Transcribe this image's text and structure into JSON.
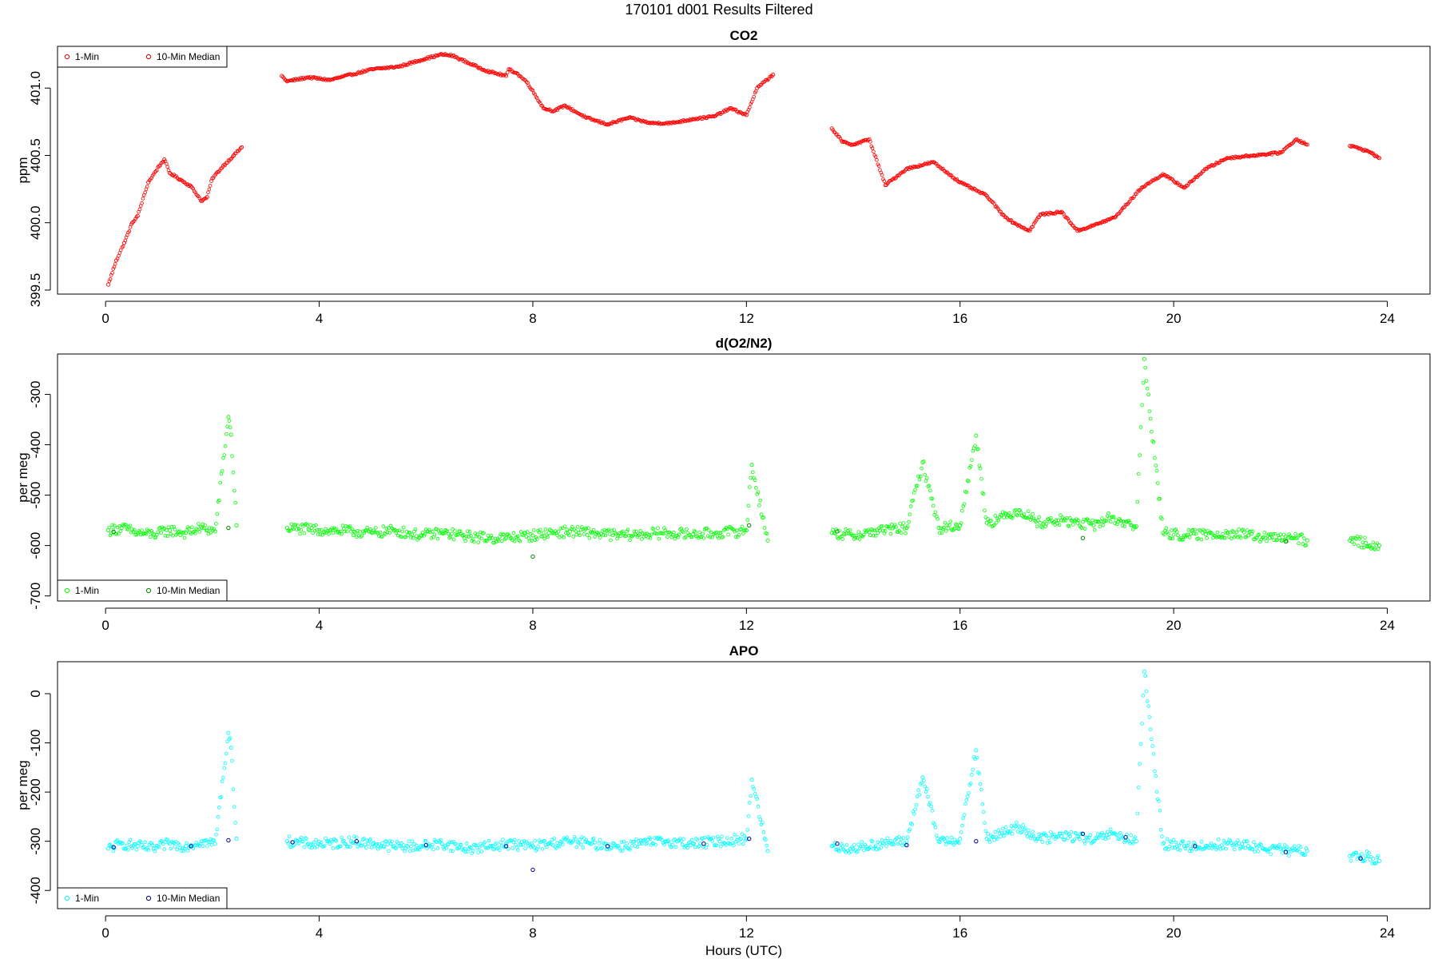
{
  "page": {
    "title": "170101   d001   Results Filtered",
    "xlabel": "Hours (UTC)"
  },
  "chart_data": [
    {
      "type": "scatter",
      "title": "CO2",
      "xlabel": "",
      "ylabel": "ppm",
      "xlim": [
        -0.9,
        24.8
      ],
      "ylim": [
        399.47,
        401.31
      ],
      "x_ticks": [
        0,
        4,
        8,
        12,
        16,
        20,
        24
      ],
      "y_ticks": [
        399.5,
        400.0,
        400.5,
        401.0
      ],
      "y_tick_labels": [
        "399.5",
        "400.0",
        "400.5",
        "401.0"
      ],
      "legend": {
        "position": "top-left",
        "entries": [
          "1-Min",
          "10-Min Median"
        ],
        "colors": [
          "#ff0000",
          "#cc0000"
        ]
      },
      "series": [
        {
          "name": "1-Min",
          "color": "#ff0000",
          "x": [
            0.05,
            0.2,
            0.35,
            0.5,
            0.6,
            0.8,
            1.0,
            1.1,
            1.2,
            1.4,
            1.6,
            1.8,
            1.9,
            2.0,
            2.2,
            2.4,
            2.55,
            3.3,
            3.4,
            3.8,
            4.2,
            4.6,
            5.0,
            5.5,
            6.0,
            6.3,
            6.5,
            7.0,
            7.2,
            7.5,
            7.55,
            7.7,
            7.9,
            8.2,
            8.4,
            8.6,
            9.0,
            9.4,
            9.8,
            10.2,
            10.6,
            11.0,
            11.4,
            11.7,
            12.0,
            12.2,
            12.5,
            13.6,
            13.8,
            14.0,
            14.3,
            14.6,
            15.0,
            15.5,
            16.0,
            16.5,
            16.8,
            17.0,
            17.3,
            17.5,
            17.9,
            18.2,
            18.5,
            18.9,
            19.4,
            19.8,
            20.2,
            20.6,
            21.0,
            21.5,
            22.0,
            22.3,
            22.5,
            23.3,
            23.5,
            23.7,
            23.85
          ],
          "y": [
            399.54,
            399.72,
            399.85,
            400.0,
            400.05,
            400.3,
            400.42,
            400.47,
            400.37,
            400.32,
            400.27,
            400.16,
            400.19,
            400.33,
            400.42,
            400.5,
            400.56,
            401.09,
            401.05,
            401.08,
            401.06,
            401.1,
            401.14,
            401.16,
            401.22,
            401.25,
            401.24,
            401.15,
            401.12,
            401.09,
            401.14,
            401.11,
            401.04,
            400.85,
            400.83,
            400.87,
            400.78,
            400.73,
            400.78,
            400.74,
            400.74,
            400.77,
            400.79,
            400.85,
            400.8,
            401.0,
            401.1,
            400.7,
            400.6,
            400.58,
            400.62,
            400.28,
            400.4,
            400.45,
            400.3,
            400.2,
            400.06,
            400.0,
            399.94,
            400.06,
            400.08,
            399.94,
            399.98,
            400.04,
            400.26,
            400.36,
            400.26,
            400.4,
            400.48,
            400.5,
            400.52,
            400.62,
            400.58,
            400.57,
            400.55,
            400.52,
            400.48
          ]
        },
        {
          "name": "10-Min Median",
          "color": "#cc0000",
          "x": [],
          "y": []
        }
      ]
    },
    {
      "type": "scatter",
      "title": "d(O2/N2)",
      "xlabel": "",
      "ylabel": "per meg",
      "xlim": [
        -0.9,
        24.8
      ],
      "ylim": [
        -710,
        -220
      ],
      "x_ticks": [
        0,
        4,
        8,
        12,
        16,
        20,
        24
      ],
      "y_ticks": [
        -700,
        -600,
        -500,
        -400,
        -300
      ],
      "y_tick_labels": [
        "-700",
        "-600",
        "-500",
        "-400",
        "-300"
      ],
      "legend": {
        "position": "bottom-left",
        "entries": [
          "1-Min",
          "10-Min Median"
        ],
        "colors": [
          "#00ff00",
          "#008800"
        ]
      },
      "series": [
        {
          "name": "1-Min",
          "color": "#00ff00",
          "x": [
            0.05,
            0.3,
            0.6,
            0.9,
            1.2,
            1.5,
            1.8,
            2.05,
            2.3,
            2.35,
            2.45,
            3.4,
            3.8,
            4.2,
            4.6,
            5.0,
            5.4,
            5.9,
            6.3,
            6.8,
            7.2,
            7.5,
            8.0,
            8.3,
            8.7,
            9.1,
            9.6,
            10.0,
            10.5,
            11.0,
            11.5,
            12.0,
            12.1,
            12.4,
            13.6,
            14.0,
            14.5,
            15.0,
            15.3,
            15.6,
            16.0,
            16.3,
            16.5,
            16.9,
            17.1,
            17.5,
            17.9,
            18.2,
            18.5,
            18.8,
            19.3,
            19.45,
            19.8,
            20.2,
            20.6,
            21.0,
            21.4,
            21.8,
            22.2,
            22.5,
            23.3,
            23.6,
            23.85
          ],
          "y": [
            -570,
            -565,
            -575,
            -578,
            -570,
            -575,
            -565,
            -572,
            -345,
            -380,
            -560,
            -565,
            -568,
            -570,
            -572,
            -575,
            -570,
            -580,
            -575,
            -582,
            -585,
            -585,
            -580,
            -575,
            -572,
            -575,
            -580,
            -578,
            -575,
            -578,
            -575,
            -570,
            -440,
            -590,
            -575,
            -580,
            -570,
            -565,
            -435,
            -565,
            -560,
            -382,
            -555,
            -540,
            -530,
            -555,
            -550,
            -555,
            -560,
            -545,
            -562,
            -230,
            -575,
            -580,
            -578,
            -575,
            -580,
            -585,
            -585,
            -590,
            -590,
            -595,
            -600
          ]
        },
        {
          "name": "10-Min Median",
          "color": "#008800",
          "x": [
            0.15,
            2.3,
            8.0,
            12.05,
            13.7,
            18.3,
            22.1
          ],
          "y": [
            -573,
            -565,
            -622,
            -560,
            -572,
            -585,
            -592
          ]
        }
      ]
    },
    {
      "type": "scatter",
      "title": "APO",
      "xlabel": "Hours (UTC)",
      "ylabel": "per meg",
      "xlim": [
        -0.9,
        24.8
      ],
      "ylim": [
        -437,
        65
      ],
      "x_ticks": [
        0,
        4,
        8,
        12,
        16,
        20,
        24
      ],
      "y_ticks": [
        -400,
        -300,
        -200,
        -100,
        0
      ],
      "y_tick_labels": [
        "-400",
        "-300",
        "-200",
        "-100",
        "0"
      ],
      "legend": {
        "position": "bottom-left",
        "entries": [
          "1-Min",
          "10-Min Median"
        ],
        "colors": [
          "#00ffff",
          "#000099"
        ]
      },
      "series": [
        {
          "name": "1-Min",
          "color": "#00ffff",
          "x": [
            0.05,
            0.3,
            0.6,
            0.9,
            1.2,
            1.5,
            1.8,
            2.05,
            2.3,
            2.35,
            2.45,
            3.4,
            3.8,
            4.2,
            4.6,
            5.0,
            5.4,
            5.9,
            6.3,
            6.8,
            7.2,
            7.5,
            8.0,
            8.3,
            8.7,
            9.1,
            9.6,
            10.0,
            10.5,
            11.0,
            11.5,
            12.0,
            12.1,
            12.4,
            13.6,
            14.0,
            14.5,
            15.0,
            15.3,
            15.6,
            16.0,
            16.3,
            16.5,
            16.9,
            17.1,
            17.5,
            17.9,
            18.2,
            18.5,
            18.8,
            19.3,
            19.45,
            19.8,
            20.2,
            20.6,
            21.0,
            21.4,
            21.8,
            22.2,
            22.5,
            23.3,
            23.6,
            23.85
          ],
          "y": [
            -315,
            -305,
            -310,
            -315,
            -305,
            -310,
            -300,
            -305,
            -80,
            -110,
            -295,
            -300,
            -305,
            -305,
            -300,
            -305,
            -310,
            -310,
            -305,
            -315,
            -310,
            -305,
            -310,
            -305,
            -300,
            -305,
            -310,
            -305,
            -300,
            -305,
            -300,
            -295,
            -175,
            -320,
            -310,
            -315,
            -305,
            -300,
            -170,
            -300,
            -295,
            -115,
            -295,
            -280,
            -270,
            -295,
            -290,
            -290,
            -300,
            -285,
            -300,
            45,
            -305,
            -310,
            -310,
            -305,
            -310,
            -315,
            -320,
            -320,
            -330,
            -330,
            -340
          ]
        },
        {
          "name": "10-Min Median",
          "color": "#000099",
          "x": [
            0.15,
            1.6,
            2.3,
            3.5,
            4.7,
            6.0,
            7.5,
            8.0,
            9.4,
            11.2,
            12.05,
            13.7,
            15.0,
            16.3,
            18.3,
            19.1,
            20.4,
            22.1,
            23.5
          ],
          "y": [
            -312,
            -310,
            -298,
            -302,
            -300,
            -308,
            -310,
            -358,
            -310,
            -305,
            -295,
            -305,
            -308,
            -300,
            -285,
            -292,
            -310,
            -322,
            -335
          ]
        }
      ]
    }
  ]
}
